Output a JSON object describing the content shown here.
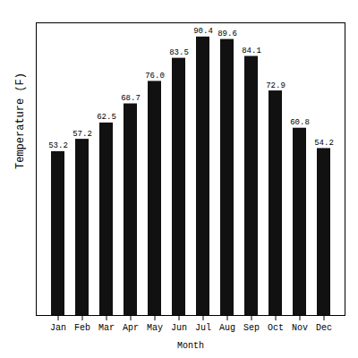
{
  "chart_data": {
    "type": "bar",
    "categories": [
      "Jan",
      "Feb",
      "Mar",
      "Apr",
      "May",
      "Jun",
      "Jul",
      "Aug",
      "Sep",
      "Oct",
      "Nov",
      "Dec"
    ],
    "values": [
      53.2,
      57.2,
      62.5,
      68.7,
      76.0,
      83.5,
      90.4,
      89.6,
      84.1,
      72.9,
      60.8,
      54.2
    ],
    "value_labels": [
      "53.2",
      "57.2",
      "62.5",
      "68.7",
      "76.0",
      "83.5",
      "90.4",
      "89.6",
      "84.1",
      "72.9",
      "60.8",
      "54.2"
    ],
    "color": "#111111",
    "xlabel": "Month",
    "ylabel": "Temperature (F)",
    "ylim": [
      0,
      95
    ],
    "tick_labels": "x",
    "data_labels": true,
    "grid": false
  }
}
